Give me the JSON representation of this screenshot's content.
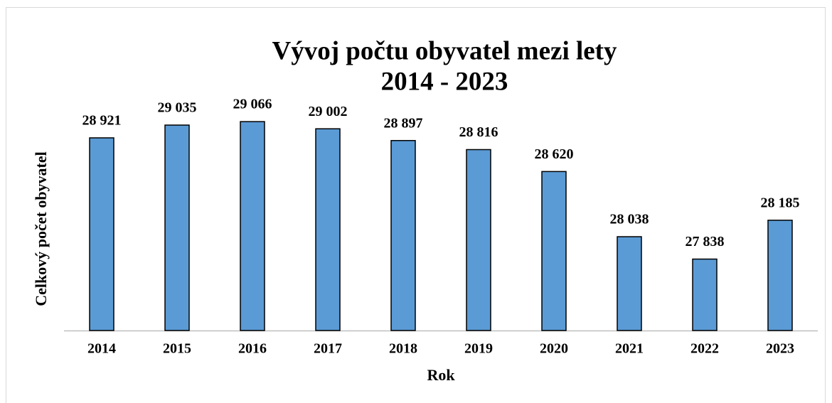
{
  "chart_data": {
    "type": "bar",
    "title": [
      "Vývoj počtu obyvatel mezi lety",
      "2014 - 2023"
    ],
    "xlabel": "Rok",
    "ylabel": "Celkový počet obyvatel",
    "categories": [
      "2014",
      "2015",
      "2016",
      "2017",
      "2018",
      "2019",
      "2020",
      "2021",
      "2022",
      "2023"
    ],
    "values": [
      28921,
      29035,
      29066,
      29002,
      28897,
      28816,
      28620,
      28038,
      27838,
      28185
    ],
    "value_labels": [
      "28 921",
      "29 035",
      "29 066",
      "29 002",
      "28 897",
      "28 816",
      "28 620",
      "28 038",
      "27 838",
      "28 185"
    ],
    "color": "#5b9bd5",
    "ylim": [
      27200,
      29200
    ]
  }
}
